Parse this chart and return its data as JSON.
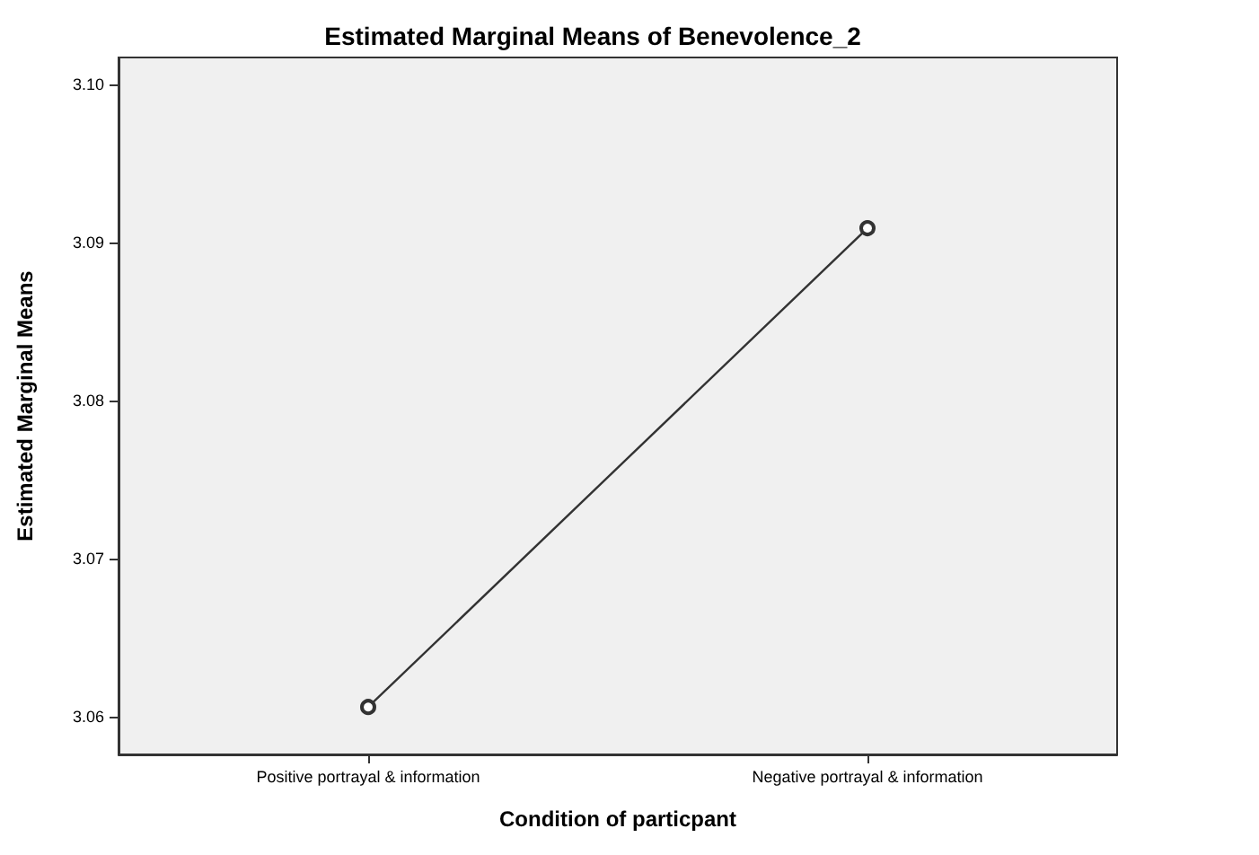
{
  "chart_data": {
    "type": "line",
    "title": "Estimated Marginal Means of Benevolence_2",
    "xlabel": "Condition of particpant",
    "ylabel": "Estimated Marginal Means",
    "categories": [
      "Positive portrayal & information",
      "Negative portrayal & information"
    ],
    "series": [
      {
        "color": "#333333",
        "values": [
          3.0606,
          3.0909
        ]
      }
    ],
    "ylim": [
      3.0576,
      3.1017
    ],
    "yticks": [
      3.06,
      3.07,
      3.08,
      3.09,
      {
        "value": 3.1,
        "label": "3.10"
      }
    ],
    "grid": false,
    "marker": "circle",
    "line_style": "solid"
  }
}
